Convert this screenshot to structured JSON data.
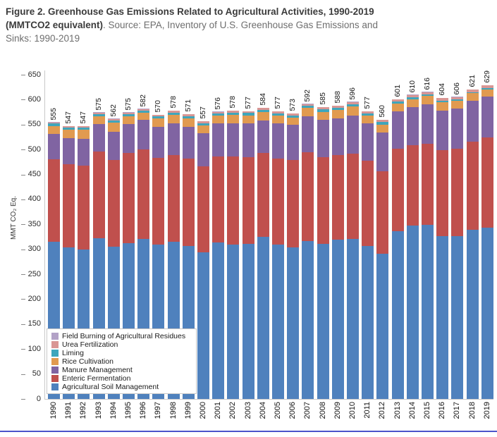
{
  "figure": {
    "title_line1": "Figure 2. Greenhouse Gas Emissions Related to Agricultural Activities, 1990-2019",
    "title_line2_bold": "(MMTCO2 equivalent)",
    "title_line2_source": ". Source: EPA, Inventory of U.S. Greenhouse Gas Emissions and",
    "source_line3": "Sinks: 1990-2019"
  },
  "chart_data": {
    "type": "bar",
    "stacked": true,
    "title": "Greenhouse Gas Emissions Related to Agricultural Activities, 1990-2019",
    "xlabel": "",
    "ylabel": "MMT CO₂ Eq.",
    "ylim": [
      0,
      650
    ],
    "ytick_step": 50,
    "grid": false,
    "legend_position": "inside-bottom-left",
    "x": [
      "1990",
      "1991",
      "1992",
      "1993",
      "1994",
      "1995",
      "1996",
      "1997",
      "1998",
      "1999",
      "2000",
      "2001",
      "2002",
      "2003",
      "2004",
      "2005",
      "2006",
      "2007",
      "2008",
      "2009",
      "2010",
      "2011",
      "2012",
      "2013",
      "2014",
      "2015",
      "2016",
      "2017",
      "2018",
      "2019"
    ],
    "totals": [
      555,
      547,
      547,
      575,
      562,
      575,
      582,
      570,
      578,
      571,
      557,
      576,
      578,
      577,
      584,
      577,
      573,
      592,
      585,
      588,
      596,
      577,
      560,
      601,
      610,
      616,
      604,
      606,
      621,
      629
    ],
    "series": [
      {
        "name": "Agricultural Soil Management",
        "color": "#4f81bd",
        "values": [
          315,
          304,
          299,
          322,
          305,
          312,
          320,
          309,
          315,
          306,
          294,
          313,
          310,
          311,
          325,
          310,
          304,
          317,
          311,
          319,
          321,
          307,
          291,
          336,
          347,
          349,
          326,
          327,
          339,
          344
        ]
      },
      {
        "name": "Enteric Fermentation",
        "color": "#c0504d",
        "values": [
          165.2,
          166.1,
          168.7,
          174.3,
          174.0,
          180.5,
          179.6,
          174.8,
          173.7,
          175.7,
          172.8,
          173.3,
          176.0,
          173.9,
          167.5,
          172.0,
          174.4,
          177.0,
          173.9,
          169.7,
          171.4,
          170.3,
          165.0,
          165.4,
          162.2,
          162.4,
          172.3,
          174.6,
          177.4,
          179.5
        ]
      },
      {
        "name": "Manure Management",
        "color": "#8064a2",
        "values": [
          51,
          52.5,
          54,
          55,
          57,
          58,
          60,
          62,
          64,
          64,
          65.5,
          66,
          67,
          67.5,
          66,
          70,
          71,
          73,
          74,
          73,
          76,
          75,
          77.5,
          75,
          76,
          79,
          79.5,
          80,
          81,
          82
        ]
      },
      {
        "name": "Rice Cultivation",
        "color": "#e19a50",
        "values": [
          16,
          16.5,
          17.5,
          16,
          18,
          16.5,
          14.5,
          16,
          17,
          17,
          16.5,
          15.5,
          16,
          16,
          17,
          16.5,
          15,
          16,
          16.5,
          17,
          18,
          16,
          15.5,
          15.5,
          16,
          16.5,
          17.5,
          15.5,
          15.5,
          15.1
        ]
      },
      {
        "name": "Liming",
        "color": "#3ea6bc",
        "values": [
          4.7,
          4.7,
          4.4,
          4.2,
          4.4,
          4.4,
          4.2,
          4.4,
          4.4,
          4.4,
          4.3,
          4.2,
          4.9,
          4.6,
          4.3,
          4.3,
          4.2,
          4.5,
          5.0,
          4.8,
          4.8,
          3.9,
          6.0,
          3.9,
          3.6,
          3.7,
          3.1,
          3.1,
          2.2,
          2.4
        ]
      },
      {
        "name": "Urea Fertilization",
        "color": "#d99694",
        "values": [
          2.4,
          2.5,
          2.7,
          2.8,
          2.9,
          2.9,
          3.0,
          3.1,
          3.2,
          3.2,
          3.2,
          3.3,
          3.4,
          3.3,
          3.5,
          3.5,
          3.7,
          3.8,
          3.9,
          3.8,
          4.1,
          4.1,
          4.3,
          4.5,
          4.5,
          4.7,
          4.9,
          5.1,
          5.2,
          5.3
        ]
      },
      {
        "name": "Field Burning of Agricultural Residues",
        "color": "#b3a2c7",
        "values": [
          0.7,
          0.7,
          0.7,
          0.7,
          0.7,
          0.7,
          0.7,
          0.7,
          0.7,
          0.7,
          0.7,
          0.7,
          0.7,
          0.7,
          0.7,
          0.7,
          0.7,
          0.7,
          0.7,
          0.7,
          0.7,
          0.7,
          0.7,
          0.7,
          0.7,
          0.7,
          0.7,
          0.7,
          0.7,
          0.7
        ]
      }
    ]
  },
  "page": {
    "divider_color": "#4b54ca"
  }
}
